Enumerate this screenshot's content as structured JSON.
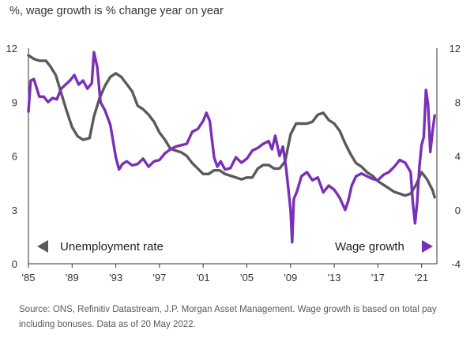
{
  "title": "%, wage growth is % change year on year",
  "footnote": "Source: ONS, Refinitiv Datastream, J.P. Morgan Asset Management. Wage growth is based on total pay including bonuses. Data as of 20 May 2022.",
  "colors": {
    "unemployment": "#5a5a5a",
    "wage": "#7a2fb8",
    "axis": "#333333"
  },
  "chart_data": {
    "type": "line",
    "title": "%, wage growth is % change year on year",
    "x_ticks": [
      "'85",
      "'89",
      "'93",
      "'97",
      "'01",
      "'05",
      "'09",
      "'13",
      "'17",
      "'21"
    ],
    "xlim": [
      1985.0,
      2022.4
    ],
    "left_axis": {
      "ylim": [
        0,
        12
      ],
      "ticks": [
        "0",
        "3",
        "6",
        "9",
        "12"
      ]
    },
    "right_axis": {
      "ylim": [
        -4,
        12
      ],
      "ticks": [
        "-4",
        "0",
        "4",
        "8",
        "12"
      ]
    },
    "legend": {
      "left": "Unemployment rate",
      "right": "Wage growth"
    },
    "series": [
      {
        "name": "Unemployment rate",
        "axis": "left",
        "x": [
          1985.0,
          1985.5,
          1986.0,
          1986.6,
          1987.0,
          1987.5,
          1988.0,
          1988.5,
          1989.0,
          1989.5,
          1990.0,
          1990.6,
          1991.0,
          1991.5,
          1992.0,
          1992.5,
          1993.0,
          1993.5,
          1994.0,
          1994.5,
          1995.0,
          1995.5,
          1996.0,
          1996.5,
          1997.0,
          1997.5,
          1998.0,
          1998.5,
          1999.0,
          1999.5,
          2000.0,
          2000.5,
          2001.0,
          2001.5,
          2002.0,
          2002.5,
          2003.0,
          2003.5,
          2004.0,
          2004.5,
          2005.0,
          2005.5,
          2006.0,
          2006.5,
          2007.0,
          2007.5,
          2008.0,
          2008.5,
          2009.0,
          2009.5,
          2010.0,
          2010.5,
          2011.0,
          2011.5,
          2012.0,
          2012.5,
          2013.0,
          2013.5,
          2014.0,
          2014.5,
          2015.0,
          2015.5,
          2016.0,
          2016.5,
          2017.0,
          2017.5,
          2018.0,
          2018.5,
          2019.0,
          2019.5,
          2020.0,
          2020.5,
          2021.0,
          2021.5,
          2022.0,
          2022.2
        ],
        "values": [
          11.6,
          11.4,
          11.3,
          11.3,
          11.0,
          10.5,
          9.5,
          8.5,
          7.6,
          7.1,
          6.9,
          7.0,
          8.2,
          9.2,
          9.9,
          10.4,
          10.6,
          10.4,
          10.0,
          9.6,
          8.8,
          8.6,
          8.3,
          7.9,
          7.3,
          6.9,
          6.4,
          6.3,
          6.2,
          6.0,
          5.6,
          5.3,
          5.0,
          5.0,
          5.2,
          5.2,
          5.0,
          4.9,
          4.8,
          4.7,
          4.8,
          4.8,
          5.3,
          5.5,
          5.5,
          5.3,
          5.3,
          5.7,
          7.2,
          7.8,
          7.8,
          7.8,
          7.9,
          8.3,
          8.4,
          8.0,
          7.8,
          7.4,
          6.7,
          6.1,
          5.6,
          5.4,
          5.1,
          4.9,
          4.6,
          4.4,
          4.2,
          4.0,
          3.9,
          3.8,
          3.9,
          4.4,
          5.1,
          4.7,
          4.1,
          3.7
        ]
      },
      {
        "name": "Wage growth",
        "axis": "right",
        "x": [
          1985.0,
          1985.2,
          1985.5,
          1986.0,
          1986.4,
          1986.8,
          1987.2,
          1987.6,
          1988.0,
          1988.4,
          1988.8,
          1989.2,
          1989.6,
          1990.0,
          1990.4,
          1990.8,
          1991.0,
          1991.3,
          1991.6,
          1992.0,
          1992.5,
          1993.0,
          1993.3,
          1993.6,
          1994.0,
          1994.5,
          1995.0,
          1995.5,
          1996.0,
          1996.5,
          1997.0,
          1997.5,
          1998.0,
          1998.5,
          1999.0,
          1999.5,
          2000.0,
          2000.5,
          2001.0,
          2001.3,
          2001.6,
          2002.0,
          2002.3,
          2002.6,
          2003.0,
          2003.5,
          2004.0,
          2004.5,
          2005.0,
          2005.5,
          2006.0,
          2006.5,
          2007.0,
          2007.3,
          2007.6,
          2008.0,
          2008.3,
          2008.6,
          2009.0,
          2009.15,
          2009.3,
          2009.6,
          2010.0,
          2010.5,
          2011.0,
          2011.5,
          2012.0,
          2012.5,
          2013.0,
          2013.5,
          2014.0,
          2014.3,
          2014.6,
          2015.0,
          2015.5,
          2016.0,
          2016.5,
          2017.0,
          2017.5,
          2018.0,
          2018.5,
          2019.0,
          2019.5,
          2020.0,
          2020.2,
          2020.4,
          2020.6,
          2020.8,
          2021.0,
          2021.2,
          2021.4,
          2021.6,
          2021.8,
          2022.0,
          2022.2
        ],
        "values": [
          7.3,
          9.6,
          9.7,
          8.4,
          8.4,
          8.0,
          8.3,
          8.2,
          9.0,
          9.3,
          9.6,
          10.0,
          9.3,
          9.6,
          9.0,
          9.4,
          11.7,
          10.6,
          8.0,
          7.4,
          6.3,
          3.9,
          3.0,
          3.4,
          3.6,
          3.3,
          3.4,
          3.8,
          3.2,
          3.6,
          3.7,
          4.2,
          4.5,
          4.7,
          4.8,
          4.9,
          5.8,
          6.0,
          6.6,
          7.2,
          6.6,
          3.9,
          3.2,
          3.6,
          3.0,
          3.1,
          3.9,
          3.5,
          3.8,
          4.4,
          4.6,
          4.9,
          5.1,
          4.5,
          5.5,
          4.0,
          4.7,
          3.1,
          0.0,
          -2.4,
          0.8,
          1.4,
          2.5,
          2.8,
          2.2,
          2.4,
          1.3,
          1.8,
          1.5,
          0.9,
          0.0,
          0.7,
          1.8,
          2.5,
          2.7,
          2.5,
          2.3,
          2.2,
          2.6,
          2.8,
          3.2,
          3.7,
          3.5,
          2.8,
          0.5,
          -1.0,
          0.6,
          3.2,
          4.8,
          5.4,
          8.9,
          7.8,
          4.3,
          5.8,
          7.0
        ]
      }
    ]
  }
}
